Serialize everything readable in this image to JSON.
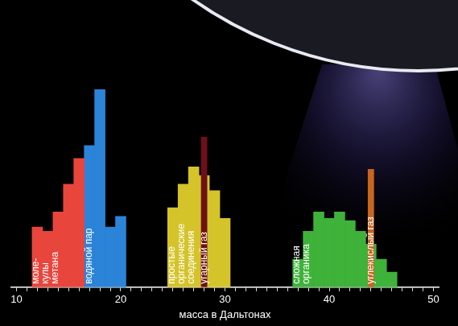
{
  "chart_data": {
    "type": "bar",
    "x_label": "масса в Дальтонах",
    "categories": [
      10,
      null,
      null,
      null,
      null,
      null,
      null,
      null,
      null,
      null,
      20,
      null,
      null,
      null,
      null,
      null,
      null,
      null,
      null,
      null,
      30,
      null,
      null,
      null,
      null,
      null,
      null,
      null,
      null,
      null,
      40,
      null,
      null,
      null,
      null,
      null,
      null,
      null,
      null,
      null,
      50
    ],
    "series": [
      {
        "name": "моле-\nкулы\nметана",
        "color": "#e8453c",
        "values": [
          null,
          null,
          28,
          26,
          35,
          48,
          60,
          null,
          null,
          null,
          null,
          null,
          null,
          null,
          null,
          null,
          null,
          null,
          null,
          null,
          null,
          null,
          null,
          null,
          null,
          null,
          null,
          null,
          null,
          null,
          null,
          null,
          null,
          null,
          null,
          null,
          null,
          null,
          null,
          null,
          null
        ]
      },
      {
        "name": "водяной пар",
        "color": "#2b84d8",
        "values": [
          null,
          null,
          null,
          null,
          null,
          null,
          null,
          66,
          92,
          28,
          33,
          null,
          null,
          null,
          null,
          null,
          null,
          null,
          null,
          null,
          null,
          null,
          null,
          null,
          null,
          null,
          null,
          null,
          null,
          null,
          null,
          null,
          null,
          null,
          null,
          null,
          null,
          null,
          null,
          null,
          null
        ]
      },
      {
        "name": "простые\nорганические\nсоединения",
        "color": "#d4c42a",
        "values": [
          null,
          null,
          null,
          null,
          null,
          null,
          null,
          null,
          null,
          null,
          null,
          null,
          null,
          null,
          null,
          37,
          48,
          56,
          52,
          45,
          32,
          null,
          null,
          null,
          null,
          null,
          null,
          null,
          null,
          null,
          null,
          null,
          null,
          null,
          null,
          null,
          null,
          null,
          null,
          null,
          null
        ]
      },
      {
        "name": "угарный газ",
        "color": "#6e0f1a",
        "values": [
          null,
          null,
          null,
          null,
          null,
          null,
          null,
          null,
          null,
          null,
          null,
          null,
          null,
          null,
          null,
          null,
          null,
          null,
          70,
          null,
          null,
          null,
          null,
          null,
          null,
          null,
          null,
          null,
          null,
          null,
          null,
          null,
          null,
          null,
          null,
          null,
          null,
          null,
          null,
          null,
          null
        ]
      },
      {
        "name": "сложная\nорганика",
        "color": "#3fb23a",
        "values": [
          null,
          null,
          null,
          null,
          null,
          null,
          null,
          null,
          null,
          null,
          null,
          null,
          null,
          null,
          null,
          null,
          null,
          null,
          null,
          null,
          null,
          null,
          null,
          null,
          null,
          null,
          null,
          13,
          26,
          35,
          32,
          35,
          31,
          26,
          20,
          13,
          7,
          null,
          null,
          null,
          null
        ]
      },
      {
        "name": "углекислый газ",
        "color": "#c8651e",
        "values": [
          null,
          null,
          null,
          null,
          null,
          null,
          null,
          null,
          null,
          null,
          null,
          null,
          null,
          null,
          null,
          null,
          null,
          null,
          null,
          null,
          null,
          null,
          null,
          null,
          null,
          null,
          null,
          null,
          null,
          null,
          null,
          null,
          null,
          null,
          55,
          null,
          null,
          null,
          null,
          null,
          null
        ]
      }
    ],
    "ylim": [
      0,
      100
    ],
    "tick_labels": "x",
    "grid": false
  }
}
